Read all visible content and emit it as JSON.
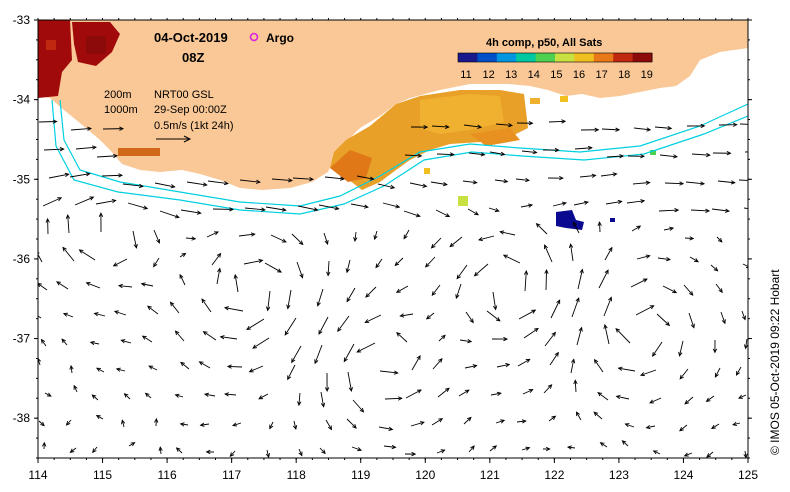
{
  "header": {
    "date": "04-Oct-2019",
    "time": "08Z",
    "argo_label": "Argo"
  },
  "colorbar": {
    "title": "4h comp, p50, All Sats",
    "labels": [
      "11",
      "12",
      "13",
      "14",
      "15",
      "16",
      "17",
      "18",
      "19"
    ],
    "colors": [
      "#1a1a8c",
      "#0050c8",
      "#0096e0",
      "#00c8a0",
      "#50d050",
      "#c8e040",
      "#f0c020",
      "#e87818",
      "#c02810",
      "#8c0a0a"
    ]
  },
  "legend": {
    "depth_200": "200m",
    "depth_1000": "1000m",
    "product": "NRT00 GSL",
    "product_date": "29-Sep 00:00Z",
    "scale": "0.5m/s (1kt 24h)"
  },
  "axes": {
    "x_ticks": [
      "114",
      "115",
      "116",
      "117",
      "118",
      "119",
      "120",
      "121",
      "122",
      "123",
      "124",
      "125"
    ],
    "y_ticks": [
      "-33",
      "-34",
      "-35",
      "-36",
      "-37",
      "-38"
    ],
    "x_range": [
      114,
      125
    ],
    "y_range": [
      -38.5,
      -33
    ]
  },
  "colors": {
    "land": "#fac896",
    "isobath": "#00d0e0",
    "sst_warm": "#e8a028",
    "sst_hot": "#a00a0a",
    "sst_cold": "#0a0a90"
  },
  "credit": "© IMOS 05-Oct-2019 09:22 Hobart"
}
